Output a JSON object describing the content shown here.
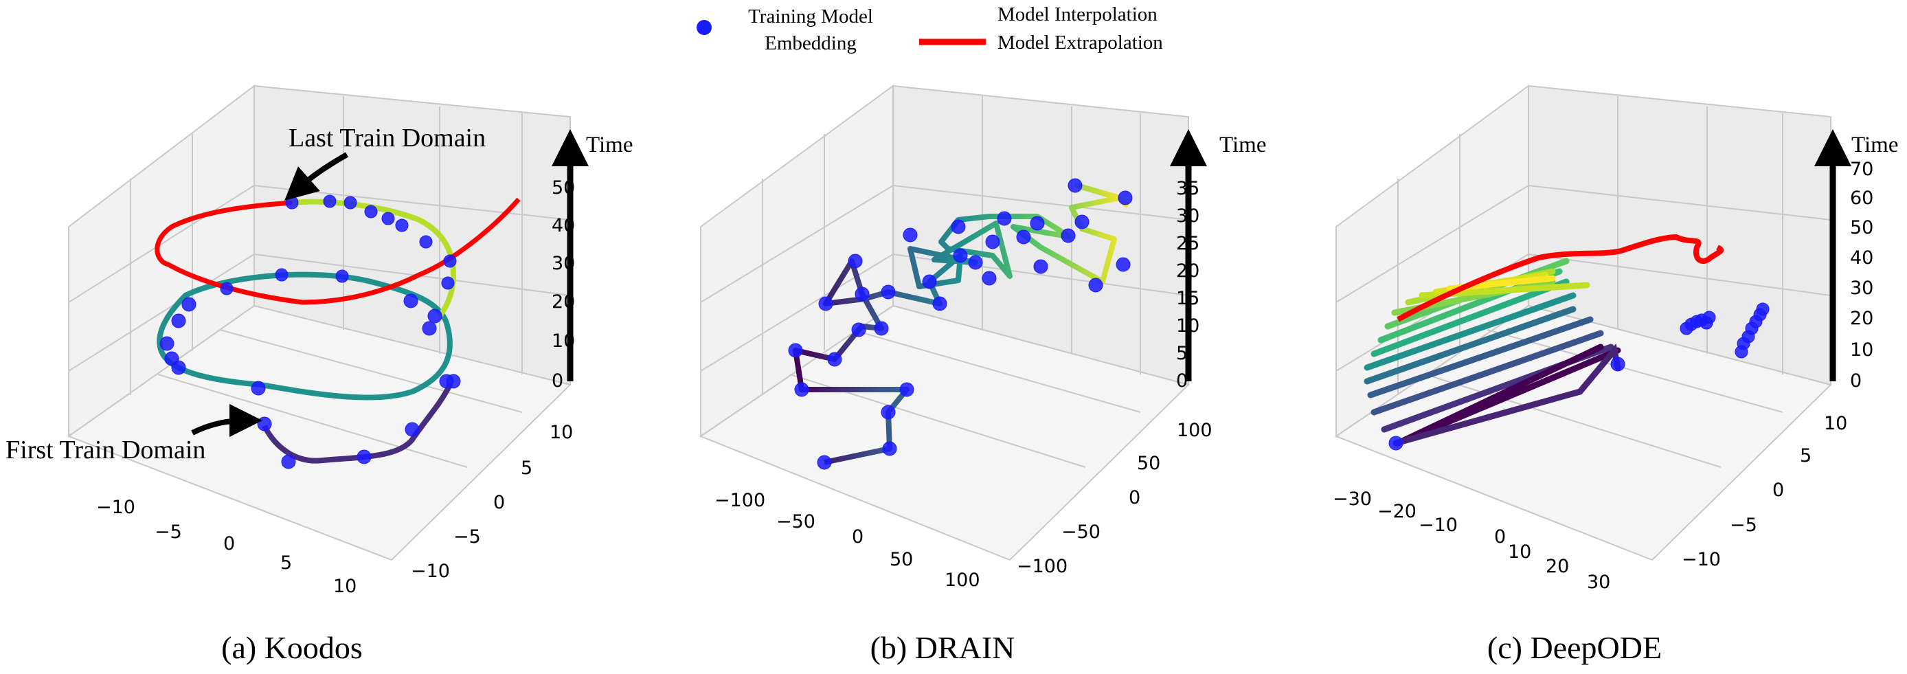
{
  "legend": {
    "embedding_label_line1": "Training Model",
    "embedding_label_line2": "Embedding",
    "interpolation_label": "Model Interpolation",
    "extrapolation_label": "Model Extrapolation",
    "colors": {
      "embedding": "#1a1aff",
      "extrapolation": "#ff0000",
      "interpolation_start": "#440154",
      "interpolation_end": "#fde725"
    }
  },
  "chart_data": [
    {
      "type": "line",
      "id": "koodos",
      "caption": "(a) Koodos",
      "z_axis_label": "Time",
      "z_ticks": [
        "0",
        "5",
        "10",
        "15",
        "20",
        "25",
        "30",
        "35",
        "40",
        "45",
        "50"
      ],
      "x_ticks": [
        "−10",
        "−5",
        "0",
        "5",
        "10"
      ],
      "y_ticks": [
        "−10",
        "−5",
        "0",
        "5",
        "10"
      ],
      "zlim": [
        0,
        52
      ],
      "annotations": [
        "Last Train Domain",
        "First Train Domain"
      ],
      "series": [
        {
          "role": "interpolation",
          "colormap": "viridis"
        },
        {
          "role": "extrapolation",
          "color": "#ff0000"
        },
        {
          "role": "training_embeddings",
          "color": "#1a1aff"
        }
      ]
    },
    {
      "type": "line",
      "id": "drain",
      "caption": "(b) DRAIN",
      "z_axis_label": "Time",
      "z_ticks": [
        "0",
        "5",
        "10",
        "15",
        "20",
        "25",
        "30",
        "35"
      ],
      "x_ticks": [
        "−100",
        "−50",
        "0",
        "50",
        "100"
      ],
      "y_ticks": [
        "−100",
        "−50",
        "0",
        "50",
        "100"
      ],
      "zlim": [
        0,
        37
      ],
      "series": [
        {
          "role": "interpolation",
          "colormap": "viridis"
        },
        {
          "role": "training_embeddings",
          "color": "#1a1aff"
        }
      ]
    },
    {
      "type": "line",
      "id": "deepode",
      "caption": "(c) DeepODE",
      "z_axis_label": "Time",
      "z_ticks": [
        "0",
        "10",
        "20",
        "30",
        "40",
        "50",
        "60",
        "70"
      ],
      "x_ticks": [
        "−30",
        "−20",
        "−10",
        "0",
        "10",
        "20",
        "30"
      ],
      "y_ticks": [
        "−10",
        "−5",
        "0",
        "5",
        "10"
      ],
      "zlim": [
        0,
        72
      ],
      "series": [
        {
          "role": "interpolation",
          "colormap": "viridis"
        },
        {
          "role": "extrapolation",
          "color": "#ff0000"
        },
        {
          "role": "training_embeddings",
          "color": "#1a1aff"
        }
      ]
    }
  ]
}
